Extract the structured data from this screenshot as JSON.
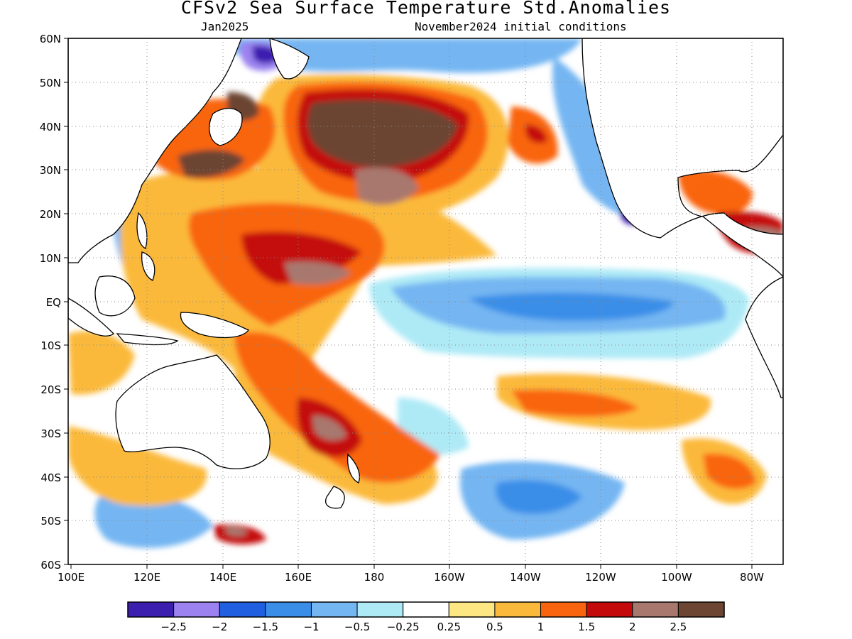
{
  "title": "CFSv2 Sea Surface Temperature Std.Anomalies",
  "subtitle_left": "Jan2025",
  "subtitle_right": "November2024 initial conditions",
  "lat_labels": [
    "60N",
    "50N",
    "40N",
    "30N",
    "20N",
    "10N",
    "EQ",
    "10S",
    "20S",
    "30S",
    "40S",
    "50S",
    "60S"
  ],
  "lon_labels": [
    "100E",
    "120E",
    "140E",
    "160E",
    "180",
    "160W",
    "140W",
    "120W",
    "100W",
    "80W"
  ],
  "colorbar": {
    "colors": [
      "#3d1fb0",
      "#9b82f0",
      "#1f5fe0",
      "#3a8ee8",
      "#74b6f2",
      "#aeeaf6",
      "#ffffff",
      "#fde783",
      "#fbb93b",
      "#f9650f",
      "#c40a0a",
      "#a8786e",
      "#6c4533"
    ],
    "labels": [
      "−2.5",
      "−2",
      "−1.5",
      "−1",
      "−0.5",
      "−0.25",
      "0.25",
      "0.5",
      "1",
      "1.5",
      "2",
      "2.5"
    ]
  }
}
